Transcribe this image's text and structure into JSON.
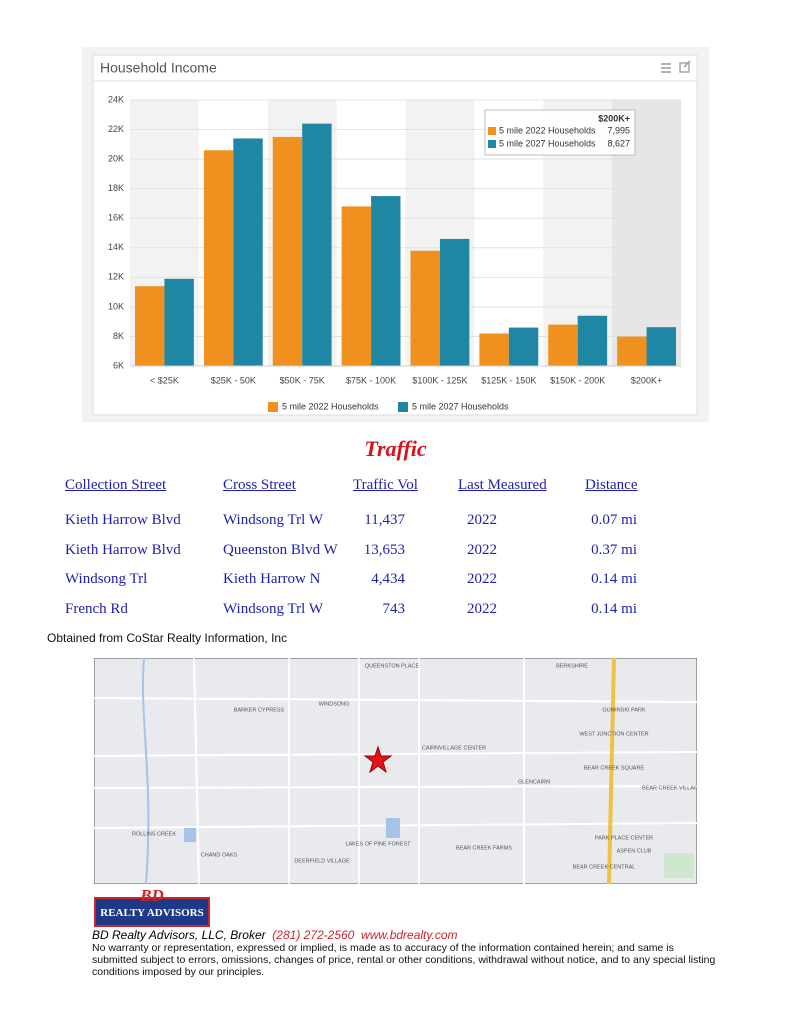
{
  "chart_data": {
    "type": "bar",
    "title": "Household Income",
    "categories": [
      "< $25K",
      "$25K - 50K",
      "$50K - 75K",
      "$75K - 100K",
      "$100K - 125K",
      "$125K - 150K",
      "$150K - 200K",
      "$200K+"
    ],
    "series": [
      {
        "name": "5 mile 2022 Households",
        "color": "#f0901e",
        "values": [
          11400,
          20600,
          21500,
          16800,
          13800,
          8200,
          8800,
          7995
        ]
      },
      {
        "name": "5 mile 2027 Households",
        "color": "#1f87a3",
        "values": [
          11900,
          21400,
          22400,
          17500,
          14600,
          8600,
          9400,
          8627
        ]
      }
    ],
    "ylim": [
      6000,
      24000
    ],
    "yticks": [
      {
        "value": 6000,
        "label": "6K"
      },
      {
        "value": 8000,
        "label": "8K"
      },
      {
        "value": 10000,
        "label": "10K"
      },
      {
        "value": 12000,
        "label": "12K"
      },
      {
        "value": 14000,
        "label": "14K"
      },
      {
        "value": 16000,
        "label": "16K"
      },
      {
        "value": 18000,
        "label": "18K"
      },
      {
        "value": 20000,
        "label": "20K"
      },
      {
        "value": 22000,
        "label": "22K"
      },
      {
        "value": 24000,
        "label": "24K"
      }
    ],
    "grid": true,
    "legend": "bottom",
    "tooltip": {
      "title": "$200K+",
      "values": [
        {
          "value": 7995,
          "label": "7,995"
        },
        {
          "value": 8627,
          "label": "8,627"
        }
      ]
    }
  },
  "traffic": {
    "title": "Traffic",
    "headers": [
      "Collection Street",
      "Cross Street",
      "Traffic Vol",
      "Last Measured",
      "Distance"
    ],
    "rows": [
      [
        "Kieth Harrow Blvd",
        "Windsong Trl W",
        "11,437",
        "2022",
        "0.07 mi"
      ],
      [
        "Kieth Harrow Blvd",
        "Queenston Blvd W",
        "13,653",
        "2022",
        "0.37 mi"
      ],
      [
        "Windsong Trl",
        "Kieth Harrow N",
        "4,434",
        "2022",
        "0.14 mi"
      ],
      [
        "French Rd",
        "Windsong Trl W",
        "743",
        "2022",
        "0.14 mi"
      ]
    ],
    "source": "Obtained from CoStar Realty Information, Inc"
  },
  "map": {
    "labels": [
      "QUEENSTON PLACE",
      "BERKSHIRE",
      "BARKER CYPRESS",
      "WINDSONG",
      "GUMINSKI PARK",
      "WEST JUNCTION CENTER",
      "CAIRNVILLAGE CENTER",
      "BEAR CREEK SQUARE",
      "GLENCAIRN",
      "BEAR CREEK VILLAGE",
      "ROLLINS CREEK",
      "CHAND OAKS",
      "DEERFIELD VILLAGE",
      "LAKES OF PINE FOREST",
      "BEAR CREEK FARMS",
      "PARK PLACE CENTER",
      "ASPEN CLUB",
      "BEAR CREEK CENTRAL"
    ]
  },
  "footer": {
    "logo_top": "BD",
    "logo_bottom": "REALTY ADVISORS",
    "company": "BD Realty Advisors, LLC, Broker",
    "phone": "(281) 272-2560",
    "website": "www.bdrealty.com",
    "disclaimer": "No warranty or representation, expressed or implied, is made as to accuracy of the information contained herein; and same is submitted subject to errors, omissions, changes of price, rental or other conditions, withdrawal without notice, and to any special listing conditions imposed by our principles."
  }
}
